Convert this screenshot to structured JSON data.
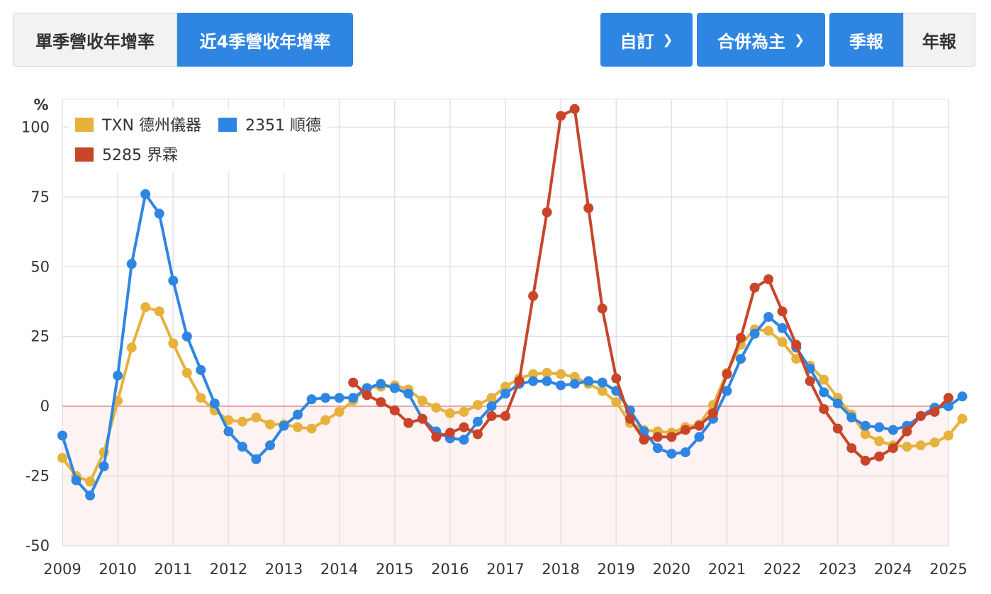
{
  "toolbar": {
    "tabs": [
      {
        "label": "單季營收年增率",
        "active": false
      },
      {
        "label": "近4季營收年增率",
        "active": true
      }
    ],
    "dropdowns": [
      {
        "label": "自訂"
      },
      {
        "label": "合併為主"
      }
    ],
    "periods": [
      {
        "label": "季報",
        "active": true
      },
      {
        "label": "年報",
        "active": false
      }
    ]
  },
  "colors": {
    "active": "#2f86e2",
    "series": [
      "#e6b23c",
      "#2f86e2",
      "#c9452a"
    ]
  },
  "chart_data": {
    "type": "line",
    "ylabel": "%",
    "ylim": [
      -50,
      110
    ],
    "yticks": [
      -50,
      -25,
      0,
      25,
      50,
      75,
      100
    ],
    "xticks": [
      "2009",
      "2010",
      "2011",
      "2012",
      "2013",
      "2014",
      "2015",
      "2016",
      "2017",
      "2018",
      "2019",
      "2020",
      "2021",
      "2022",
      "2023",
      "2024",
      "2025"
    ],
    "x_start": "2009 Q1",
    "grid": true,
    "legend_position": "top-left",
    "negative_region_shaded": true,
    "series": [
      {
        "name": "TXN 德州儀器",
        "start_index": 0,
        "values": [
          -18.5,
          -25,
          -27,
          -16.5,
          2,
          21,
          35.5,
          34,
          22.5,
          12,
          3,
          -1.5,
          -5,
          -5.5,
          -4,
          -6.5,
          -6.5,
          -7.5,
          -8,
          -5,
          -2,
          2,
          6.5,
          7,
          7.5,
          6,
          2,
          -0.5,
          -2.5,
          -2,
          0.5,
          3,
          7,
          10,
          11.5,
          12,
          11.5,
          10.5,
          8,
          5.5,
          1.5,
          -6,
          -8.5,
          -9,
          -9.5,
          -7.5,
          -6.5,
          0.5,
          12,
          22,
          27.5,
          27,
          23,
          17,
          14.5,
          9.5,
          3,
          -3,
          -10,
          -12.5,
          -14,
          -14.5,
          -14,
          -13,
          -10.5,
          -4.5
        ]
      },
      {
        "name": "2351 順德",
        "start_index": 0,
        "values": [
          -10.5,
          -26.5,
          -32,
          -21.5,
          11,
          51,
          76,
          69,
          45,
          25,
          13,
          1,
          -9,
          -14.5,
          -19,
          -14,
          -7,
          -3,
          2.5,
          3,
          3,
          3,
          6.5,
          8,
          6.5,
          4.5,
          -4.5,
          -9,
          -11.5,
          -12,
          -5.5,
          0,
          4.5,
          8,
          9,
          9,
          7.5,
          8,
          9,
          8.5,
          5.5,
          -1.5,
          -9,
          -15,
          -17,
          -16.5,
          -11,
          -4.5,
          5.5,
          17,
          26,
          32,
          28,
          21,
          13.5,
          5,
          1,
          -4,
          -7,
          -7.5,
          -8.5,
          -7,
          -3.5,
          -0.5,
          0,
          3.5
        ]
      },
      {
        "name": "5285 界霖",
        "start_index": 21,
        "values": [
          8.5,
          4,
          1.5,
          -1.5,
          -6,
          -4.5,
          -11,
          -9.5,
          -7.5,
          -10,
          -3.5,
          -3.5,
          9,
          39.5,
          69.5,
          104,
          106.5,
          71,
          35,
          10,
          -4.5,
          -12,
          -11,
          -11,
          -8.5,
          -7,
          -2.5,
          11.5,
          24.5,
          42.5,
          45.5,
          34,
          22,
          9,
          -1,
          -8,
          -15,
          -19.5,
          -18,
          -15,
          -9,
          -3.5,
          -2,
          3
        ]
      }
    ]
  }
}
